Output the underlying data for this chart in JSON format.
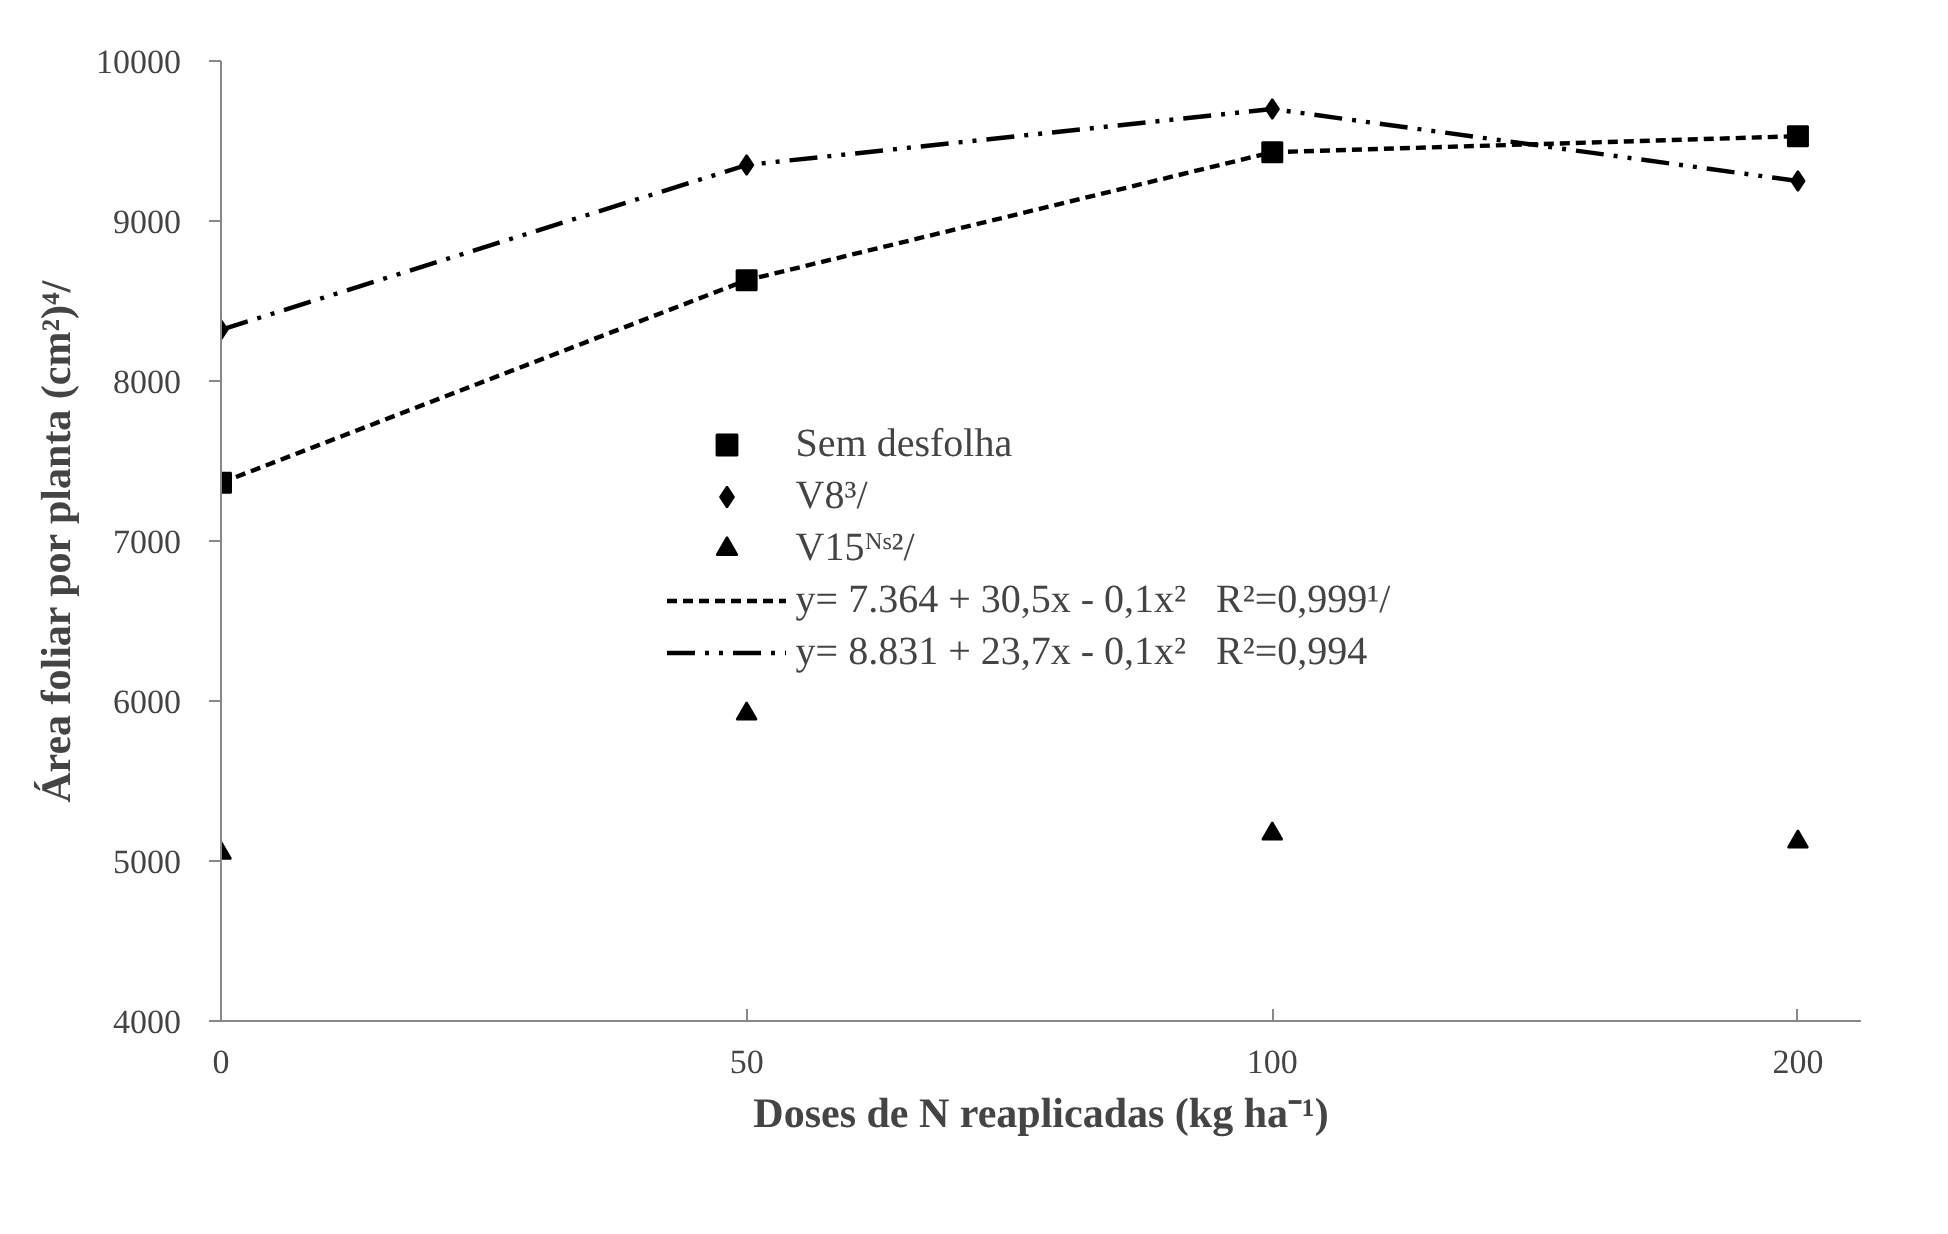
{
  "chart_data": {
    "type": "scatter",
    "xlabel": "Doses de N reaplicadas (kg ha⁻¹)",
    "ylabel": "Área foliar por planta (cm²)⁴/",
    "categories": [
      "0",
      "50",
      "100",
      "200"
    ],
    "ylim": [
      4000,
      10000
    ],
    "yticks": [
      4000,
      5000,
      6000,
      7000,
      8000,
      9000,
      10000
    ],
    "grid": false,
    "legend": "center",
    "series": [
      {
        "name": "Sem desfolha",
        "color": "#000000",
        "marker": "square",
        "values": [
          7364,
          8630,
          9430,
          9530
        ]
      },
      {
        "name": "V8³/",
        "color": "#000000",
        "marker": "diamond",
        "values": [
          8320,
          9350,
          9700,
          9250
        ]
      },
      {
        "name": "V15ᴺˢ²/",
        "color": "#000000",
        "marker": "triangle",
        "values": [
          5050,
          5920,
          5170,
          5120
        ]
      },
      {
        "type": "line",
        "name": "y= 7.364 + 30,5x - 0,1x²   R²=0,999¹/",
        "color": "#000000",
        "line_style": "dashed",
        "values": [
          7364,
          8630,
          9430,
          9530
        ]
      },
      {
        "type": "line",
        "name": "y= 8.831 + 23,7x - 0,1x²   R²=0,994",
        "color": "#000000",
        "line_style": "dashdot",
        "values": [
          8320,
          9350,
          9700,
          9250
        ]
      }
    ]
  }
}
